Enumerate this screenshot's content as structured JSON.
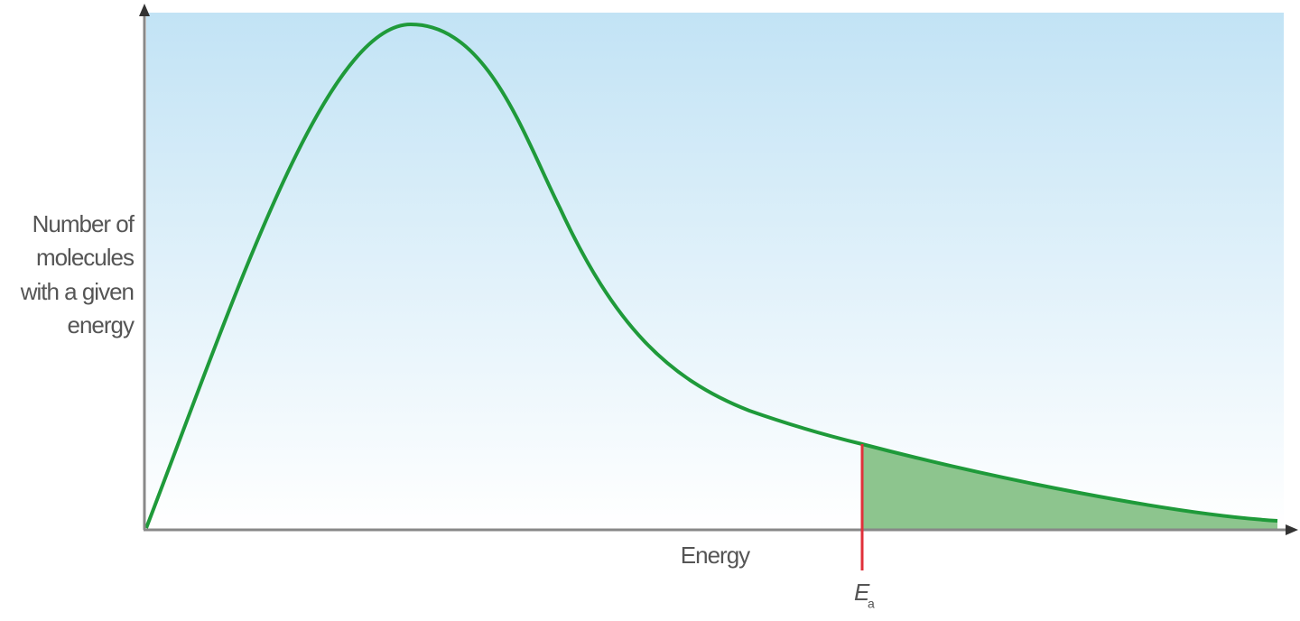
{
  "y_axis_label": [
    "Number of",
    "molecules",
    "with a given",
    "energy"
  ],
  "x_axis_label": "Energy",
  "marker": {
    "label": "E",
    "subscript": "a"
  }
}
